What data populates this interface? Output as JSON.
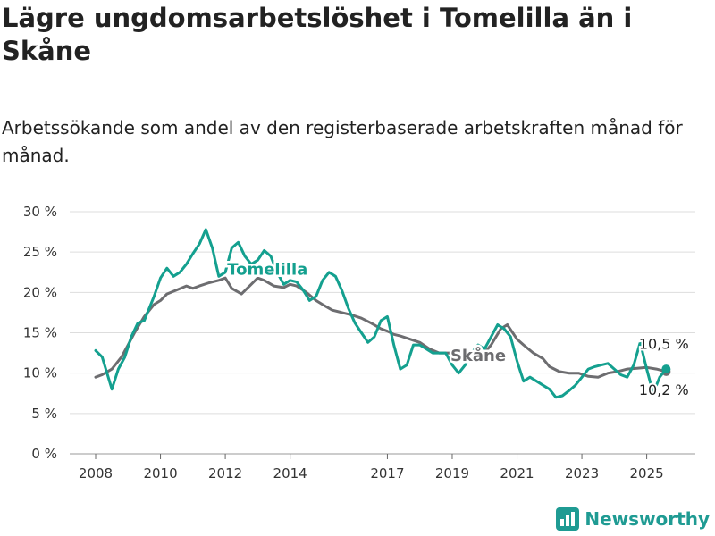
{
  "title": "Lägre ungdomsarbetslöshet i Tomelilla än i Skåne",
  "subtitle": "Arbetssökande som andel av den registerbaserade arbetskraften månad för månad.",
  "brand": {
    "name": "Newsworthy",
    "icon": "bar-chart-logo-icon"
  },
  "colors": {
    "tomelilla": "#14a08f",
    "skane": "#6d6d70",
    "grid": "#dddddd"
  },
  "chart_data": {
    "type": "line",
    "x_tick_labels": [
      "2008",
      "2010",
      "2012",
      "2014",
      "2017",
      "2019",
      "2021",
      "2023",
      "2025"
    ],
    "x_tick_positions": [
      2008.0,
      2010.0,
      2012.0,
      2014.0,
      2017.0,
      2019.0,
      2021.0,
      2023.0,
      2025.0
    ],
    "y_tick_labels": [
      "0 %",
      "5 %",
      "10 %",
      "15 %",
      "20 %",
      "25 %",
      "30 %"
    ],
    "ylim": [
      0,
      30
    ],
    "xlim": [
      2007.2,
      2026.5
    ],
    "grid": true,
    "series": [
      {
        "name": "Skåne",
        "end_label": "10,2 %",
        "x": [
          2008.0,
          2008.2,
          2008.5,
          2008.8,
          2009.0,
          2009.2,
          2009.5,
          2009.8,
          2010.0,
          2010.2,
          2010.5,
          2010.8,
          2011.0,
          2011.2,
          2011.5,
          2011.8,
          2012.0,
          2012.2,
          2012.5,
          2012.8,
          2013.0,
          2013.2,
          2013.5,
          2013.8,
          2014.0,
          2014.2,
          2014.5,
          2014.8,
          2015.0,
          2015.3,
          2015.6,
          2015.9,
          2016.2,
          2016.5,
          2016.8,
          2017.0,
          2017.2,
          2017.4,
          2017.7,
          2018.0,
          2018.3,
          2018.6,
          2018.9,
          2019.1,
          2019.4,
          2019.7,
          2020.0,
          2020.2,
          2020.5,
          2020.7,
          2021.0,
          2021.2,
          2021.5,
          2021.8,
          2022.0,
          2022.3,
          2022.6,
          2022.9,
          2023.2,
          2023.5,
          2023.8,
          2024.1,
          2024.4,
          2024.7,
          2025.0,
          2025.3,
          2025.6
        ],
        "y": [
          9.5,
          9.8,
          10.5,
          12.0,
          13.5,
          15.0,
          17.0,
          18.5,
          19.0,
          19.8,
          20.3,
          20.8,
          20.5,
          20.8,
          21.2,
          21.5,
          21.8,
          20.5,
          19.8,
          21.0,
          21.8,
          21.5,
          20.8,
          20.6,
          21.0,
          20.8,
          20.0,
          19.0,
          18.5,
          17.8,
          17.5,
          17.2,
          16.8,
          16.2,
          15.5,
          15.2,
          14.8,
          14.6,
          14.2,
          13.8,
          13.0,
          12.5,
          12.5,
          12.3,
          12.0,
          12.2,
          12.5,
          13.5,
          15.5,
          16.0,
          14.2,
          13.5,
          12.5,
          11.8,
          10.8,
          10.2,
          10.0,
          10.0,
          9.6,
          9.5,
          10.0,
          10.2,
          10.5,
          10.6,
          10.7,
          10.5,
          10.2
        ]
      },
      {
        "name": "Tomelilla",
        "end_label": "10,5 %",
        "x": [
          2008.0,
          2008.2,
          2008.5,
          2008.7,
          2008.9,
          2009.1,
          2009.3,
          2009.5,
          2009.8,
          2010.0,
          2010.2,
          2010.4,
          2010.6,
          2010.8,
          2011.0,
          2011.2,
          2011.4,
          2011.6,
          2011.8,
          2012.0,
          2012.2,
          2012.4,
          2012.6,
          2012.8,
          2013.0,
          2013.2,
          2013.4,
          2013.6,
          2013.8,
          2014.0,
          2014.2,
          2014.4,
          2014.6,
          2014.8,
          2015.0,
          2015.2,
          2015.4,
          2015.6,
          2015.8,
          2016.0,
          2016.2,
          2016.4,
          2016.6,
          2016.8,
          2017.0,
          2017.2,
          2017.4,
          2017.6,
          2017.8,
          2018.0,
          2018.2,
          2018.4,
          2018.6,
          2018.8,
          2019.0,
          2019.2,
          2019.4,
          2019.6,
          2019.8,
          2020.0,
          2020.2,
          2020.4,
          2020.6,
          2020.8,
          2021.0,
          2021.2,
          2021.4,
          2021.6,
          2021.8,
          2022.0,
          2022.2,
          2022.4,
          2022.6,
          2022.8,
          2023.0,
          2023.2,
          2023.4,
          2023.6,
          2023.8,
          2024.0,
          2024.2,
          2024.4,
          2024.6,
          2024.8,
          2025.0,
          2025.2,
          2025.4,
          2025.6
        ],
        "y": [
          12.8,
          12.0,
          8.0,
          10.5,
          12.0,
          14.5,
          16.2,
          16.5,
          19.5,
          21.8,
          23.0,
          22.0,
          22.5,
          23.5,
          24.8,
          26.0,
          27.8,
          25.5,
          22.0,
          22.5,
          25.5,
          26.2,
          24.5,
          23.5,
          24.0,
          25.2,
          24.5,
          22.5,
          21.0,
          21.5,
          21.3,
          20.3,
          19.0,
          19.5,
          21.5,
          22.5,
          22.0,
          20.2,
          18.0,
          16.2,
          15.0,
          13.8,
          14.5,
          16.5,
          17.0,
          13.5,
          10.5,
          11.0,
          13.5,
          13.5,
          13.0,
          12.5,
          12.5,
          12.5,
          11.0,
          10.0,
          11.0,
          12.5,
          13.5,
          13.0,
          14.5,
          16.0,
          15.5,
          14.5,
          11.5,
          9.0,
          9.5,
          9.0,
          8.5,
          8.0,
          7.0,
          7.2,
          7.8,
          8.5,
          9.5,
          10.5,
          10.8,
          11.0,
          11.2,
          10.5,
          9.8,
          9.5,
          11.0,
          13.8,
          10.5,
          7.5,
          9.5,
          10.5
        ]
      }
    ],
    "inline_labels": [
      "Tomelilla",
      "Skåne"
    ]
  }
}
